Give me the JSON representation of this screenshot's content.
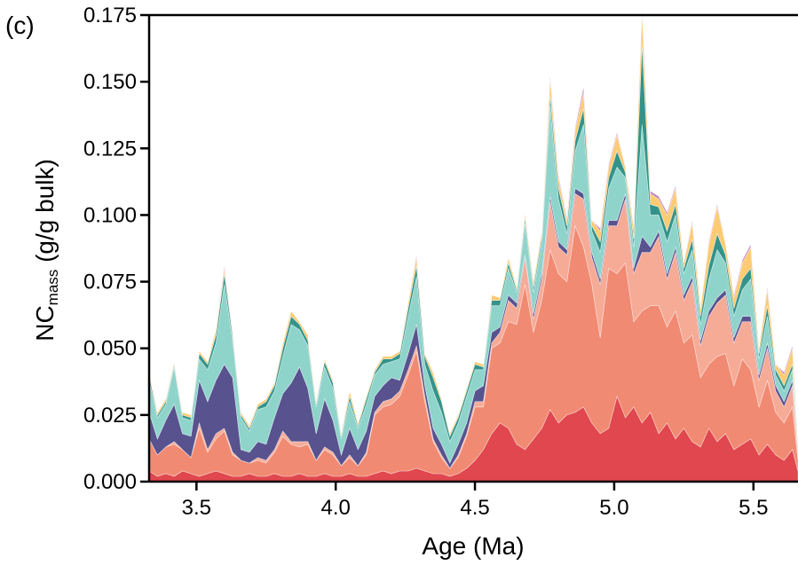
{
  "panel_label": "(c)",
  "chart_data": {
    "type": "area",
    "stacked": true,
    "xlabel": "Age (Ma)",
    "ylabel_main": "NC",
    "ylabel_sub": "mass",
    "ylabel_unit": " (g/g bulk)",
    "xlim": [
      3.33,
      5.66
    ],
    "ylim": [
      0,
      0.175
    ],
    "x_ticks": [
      3.5,
      4.0,
      4.5,
      5.0,
      5.5
    ],
    "x_tick_labels": [
      "3.5",
      "4.0",
      "4.5",
      "5.0",
      "5.5"
    ],
    "y_ticks": [
      0,
      0.025,
      0.05,
      0.075,
      0.1,
      0.125,
      0.15,
      0.175
    ],
    "y_tick_labels": [
      "0.000",
      "0.025",
      "0.050",
      "0.075",
      "0.100",
      "0.125",
      "0.150",
      "0.175"
    ],
    "grid": false,
    "legend": "none",
    "x": [
      3.33,
      3.36,
      3.39,
      3.42,
      3.45,
      3.48,
      3.51,
      3.54,
      3.57,
      3.6,
      3.63,
      3.66,
      3.69,
      3.72,
      3.75,
      3.78,
      3.81,
      3.84,
      3.87,
      3.9,
      3.93,
      3.96,
      3.99,
      4.02,
      4.05,
      4.08,
      4.11,
      4.14,
      4.17,
      4.2,
      4.23,
      4.26,
      4.29,
      4.32,
      4.35,
      4.38,
      4.41,
      4.44,
      4.47,
      4.5,
      4.53,
      4.56,
      4.59,
      4.62,
      4.65,
      4.68,
      4.71,
      4.74,
      4.77,
      4.8,
      4.83,
      4.86,
      4.89,
      4.92,
      4.95,
      4.98,
      5.01,
      5.04,
      5.07,
      5.1,
      5.13,
      5.16,
      5.19,
      5.22,
      5.25,
      5.28,
      5.31,
      5.34,
      5.37,
      5.4,
      5.43,
      5.46,
      5.49,
      5.52,
      5.55,
      5.58,
      5.61,
      5.64,
      5.66
    ],
    "series": [
      {
        "color": "#e0474e",
        "values": [
          0.004,
          0.002,
          0.003,
          0.002,
          0.004,
          0.003,
          0.002,
          0.003,
          0.004,
          0.003,
          0.002,
          0.002,
          0.003,
          0.002,
          0.002,
          0.003,
          0.002,
          0.002,
          0.003,
          0.002,
          0.002,
          0.003,
          0.002,
          0.002,
          0.003,
          0.002,
          0.002,
          0.003,
          0.004,
          0.003,
          0.004,
          0.004,
          0.005,
          0.004,
          0.003,
          0.003,
          0.002,
          0.003,
          0.005,
          0.008,
          0.012,
          0.018,
          0.022,
          0.02,
          0.014,
          0.012,
          0.016,
          0.02,
          0.027,
          0.022,
          0.025,
          0.026,
          0.028,
          0.022,
          0.018,
          0.02,
          0.032,
          0.024,
          0.028,
          0.022,
          0.026,
          0.018,
          0.022,
          0.016,
          0.02,
          0.015,
          0.013,
          0.02,
          0.015,
          0.018,
          0.012,
          0.014,
          0.016,
          0.01,
          0.014,
          0.01,
          0.008,
          0.012,
          0.004
        ]
      },
      {
        "color": "#f18a72",
        "values": [
          0.012,
          0.008,
          0.01,
          0.012,
          0.008,
          0.006,
          0.018,
          0.008,
          0.012,
          0.016,
          0.008,
          0.006,
          0.004,
          0.006,
          0.005,
          0.008,
          0.015,
          0.012,
          0.01,
          0.012,
          0.006,
          0.009,
          0.008,
          0.004,
          0.006,
          0.004,
          0.008,
          0.022,
          0.024,
          0.026,
          0.028,
          0.036,
          0.044,
          0.026,
          0.012,
          0.006,
          0.003,
          0.006,
          0.012,
          0.02,
          0.016,
          0.032,
          0.03,
          0.04,
          0.045,
          0.062,
          0.04,
          0.048,
          0.06,
          0.056,
          0.05,
          0.07,
          0.06,
          0.052,
          0.036,
          0.06,
          0.046,
          0.058,
          0.032,
          0.042,
          0.04,
          0.048,
          0.036,
          0.048,
          0.032,
          0.04,
          0.026,
          0.024,
          0.032,
          0.03,
          0.024,
          0.032,
          0.026,
          0.018,
          0.024,
          0.016,
          0.014,
          0.016,
          0.004
        ]
      },
      {
        "color": "#f6ab97",
        "values": [
          0.0,
          0.0,
          0.0,
          0.001,
          0.0,
          0.0,
          0.002,
          0.001,
          0.002,
          0.001,
          0.001,
          0.0,
          0.0,
          0.001,
          0.001,
          0.001,
          0.002,
          0.001,
          0.002,
          0.001,
          0.0,
          0.001,
          0.001,
          0.0,
          0.001,
          0.0,
          0.001,
          0.001,
          0.002,
          0.002,
          0.002,
          0.002,
          0.002,
          0.002,
          0.001,
          0.001,
          0.0,
          0.001,
          0.001,
          0.002,
          0.002,
          0.002,
          0.004,
          0.008,
          0.006,
          0.01,
          0.005,
          0.008,
          0.018,
          0.01,
          0.01,
          0.012,
          0.018,
          0.01,
          0.02,
          0.016,
          0.018,
          0.024,
          0.018,
          0.022,
          0.02,
          0.026,
          0.018,
          0.022,
          0.016,
          0.02,
          0.012,
          0.018,
          0.02,
          0.022,
          0.016,
          0.014,
          0.018,
          0.01,
          0.012,
          0.008,
          0.006,
          0.008,
          0.002
        ]
      },
      {
        "color": "#58528f",
        "values": [
          0.01,
          0.006,
          0.01,
          0.014,
          0.006,
          0.008,
          0.016,
          0.018,
          0.02,
          0.024,
          0.028,
          0.004,
          0.004,
          0.006,
          0.006,
          0.012,
          0.014,
          0.022,
          0.028,
          0.02,
          0.01,
          0.018,
          0.012,
          0.004,
          0.01,
          0.006,
          0.008,
          0.006,
          0.006,
          0.008,
          0.004,
          0.006,
          0.008,
          0.004,
          0.004,
          0.004,
          0.002,
          0.004,
          0.004,
          0.004,
          0.006,
          0.004,
          0.002,
          0.002,
          0.002,
          0.001,
          0.002,
          0.002,
          0.002,
          0.002,
          0.002,
          0.002,
          0.002,
          0.002,
          0.002,
          0.002,
          0.002,
          0.002,
          0.002,
          0.006,
          0.002,
          0.002,
          0.002,
          0.002,
          0.002,
          0.002,
          0.002,
          0.002,
          0.002,
          0.002,
          0.002,
          0.002,
          0.002,
          0.002,
          0.002,
          0.002,
          0.002,
          0.002,
          0.001
        ]
      },
      {
        "color": "#8fd4cb",
        "values": [
          0.012,
          0.008,
          0.006,
          0.014,
          0.006,
          0.006,
          0.008,
          0.012,
          0.014,
          0.03,
          0.014,
          0.012,
          0.008,
          0.012,
          0.014,
          0.01,
          0.014,
          0.022,
          0.014,
          0.016,
          0.01,
          0.012,
          0.012,
          0.006,
          0.01,
          0.008,
          0.01,
          0.008,
          0.008,
          0.006,
          0.008,
          0.014,
          0.018,
          0.008,
          0.014,
          0.012,
          0.008,
          0.008,
          0.01,
          0.008,
          0.006,
          0.01,
          0.008,
          0.01,
          0.004,
          0.012,
          0.008,
          0.012,
          0.034,
          0.016,
          0.006,
          0.014,
          0.026,
          0.008,
          0.01,
          0.012,
          0.02,
          0.006,
          0.008,
          0.042,
          0.012,
          0.006,
          0.012,
          0.012,
          0.008,
          0.01,
          0.006,
          0.012,
          0.018,
          0.01,
          0.008,
          0.01,
          0.014,
          0.006,
          0.01,
          0.004,
          0.004,
          0.004,
          0.002
        ]
      },
      {
        "color": "#33938a",
        "values": [
          0.002,
          0.001,
          0.001,
          0.001,
          0.001,
          0.001,
          0.002,
          0.002,
          0.003,
          0.004,
          0.002,
          0.001,
          0.001,
          0.001,
          0.002,
          0.002,
          0.003,
          0.003,
          0.002,
          0.002,
          0.001,
          0.002,
          0.002,
          0.001,
          0.002,
          0.001,
          0.002,
          0.001,
          0.002,
          0.001,
          0.002,
          0.003,
          0.004,
          0.003,
          0.005,
          0.004,
          0.002,
          0.002,
          0.002,
          0.002,
          0.001,
          0.002,
          0.002,
          0.002,
          0.001,
          0.002,
          0.002,
          0.002,
          0.004,
          0.004,
          0.003,
          0.004,
          0.006,
          0.002,
          0.004,
          0.004,
          0.006,
          0.002,
          0.003,
          0.03,
          0.004,
          0.003,
          0.004,
          0.004,
          0.002,
          0.004,
          0.003,
          0.005,
          0.006,
          0.003,
          0.003,
          0.004,
          0.004,
          0.002,
          0.004,
          0.002,
          0.002,
          0.002,
          0.001
        ]
      },
      {
        "color": "#fccb73",
        "values": [
          0.001,
          0.001,
          0.001,
          0.001,
          0.001,
          0.001,
          0.001,
          0.001,
          0.002,
          0.002,
          0.001,
          0.001,
          0.001,
          0.001,
          0.001,
          0.001,
          0.002,
          0.002,
          0.001,
          0.002,
          0.001,
          0.001,
          0.001,
          0.001,
          0.002,
          0.001,
          0.001,
          0.001,
          0.001,
          0.001,
          0.001,
          0.002,
          0.003,
          0.001,
          0.002,
          0.001,
          0.001,
          0.001,
          0.001,
          0.001,
          0.001,
          0.002,
          0.001,
          0.002,
          0.001,
          0.002,
          0.002,
          0.002,
          0.006,
          0.004,
          0.002,
          0.004,
          0.006,
          0.002,
          0.004,
          0.004,
          0.006,
          0.002,
          0.004,
          0.012,
          0.004,
          0.003,
          0.006,
          0.006,
          0.002,
          0.006,
          0.003,
          0.008,
          0.01,
          0.004,
          0.004,
          0.006,
          0.008,
          0.002,
          0.006,
          0.002,
          0.004,
          0.006,
          0.001
        ]
      },
      {
        "color": "#c780b8",
        "values": [
          0.0,
          0.0,
          0.0,
          0.0,
          0.0,
          0.0,
          0.0,
          0.0,
          0.0,
          0.001,
          0.0,
          0.0,
          0.0,
          0.0,
          0.0,
          0.0,
          0.0,
          0.0,
          0.0,
          0.0,
          0.0,
          0.0,
          0.0,
          0.0,
          0.0,
          0.0,
          0.0,
          0.0,
          0.0,
          0.0,
          0.0,
          0.0,
          0.001,
          0.0,
          0.0,
          0.0,
          0.0,
          0.0,
          0.0,
          0.0,
          0.0,
          0.0,
          0.0,
          0.0,
          0.0,
          0.0,
          0.0,
          0.0,
          0.001,
          0.001,
          0.001,
          0.001,
          0.002,
          0.0,
          0.001,
          0.001,
          0.001,
          0.0,
          0.001,
          0.001,
          0.001,
          0.001,
          0.001,
          0.001,
          0.0,
          0.001,
          0.0,
          0.001,
          0.001,
          0.0,
          0.001,
          0.001,
          0.001,
          0.0,
          0.001,
          0.0,
          0.001,
          0.001,
          0.0
        ]
      }
    ]
  }
}
